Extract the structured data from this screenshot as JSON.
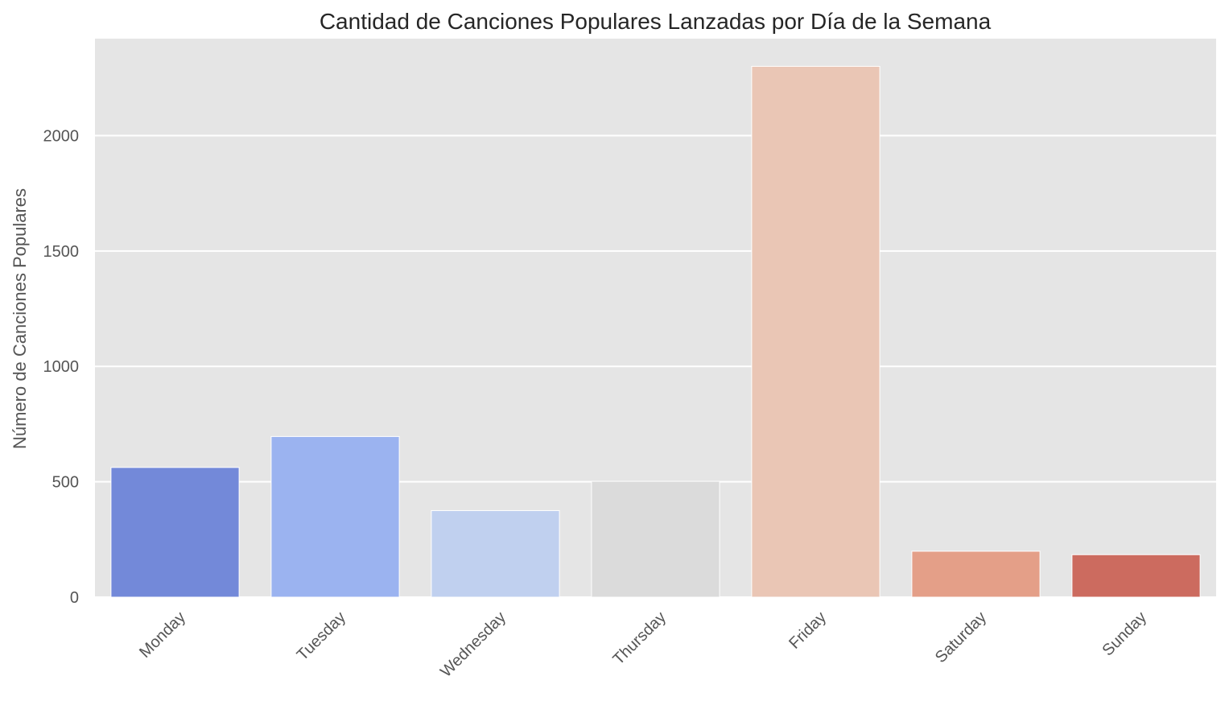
{
  "chart_data": {
    "type": "bar",
    "title": "Cantidad de Canciones Populares Lanzadas por Día de la Semana",
    "xlabel": "",
    "ylabel": "Número de Canciones Populares",
    "categories": [
      "Monday",
      "Tuesday",
      "Wednesday",
      "Thursday",
      "Friday",
      "Saturday",
      "Sunday"
    ],
    "values": [
      562,
      696,
      375,
      502,
      2300,
      199,
      184
    ],
    "colors": [
      "#7389d9",
      "#9bb3f0",
      "#c0d0ef",
      "#dbdbdb",
      "#eac6b5",
      "#e49f88",
      "#cc6b5f"
    ],
    "ylim": [
      0,
      2420
    ],
    "yticks": [
      "0",
      "500",
      "1000",
      "1500",
      "2000"
    ],
    "grid": true,
    "background": "#e5e5e5",
    "grid_color": "#ffffff"
  }
}
